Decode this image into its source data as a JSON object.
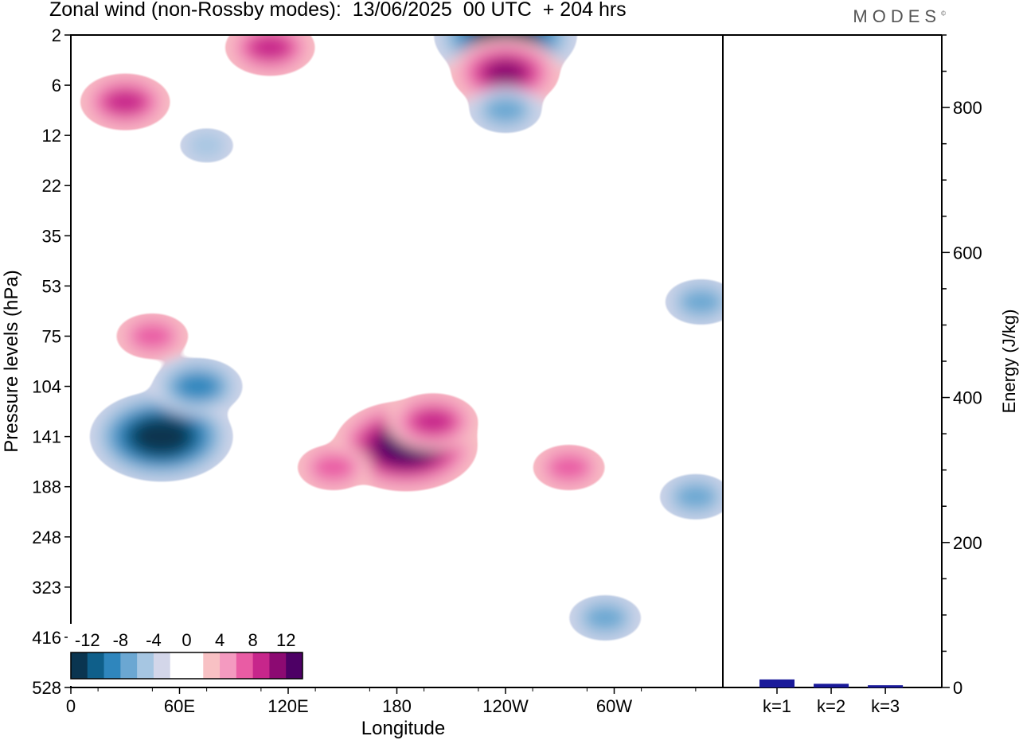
{
  "title": "Zonal wind (non-Rossby modes):  13/06/2025  00 UTC  + 204 hrs",
  "logo": "MODES",
  "logo_mark": "©",
  "chart_data": [
    {
      "type": "heatmap",
      "title": "Zonal wind (non-Rossby modes):  13/06/2025  00 UTC  + 204 hrs",
      "xlabel": "Longitude",
      "ylabel": "Pressure levels (hPa)",
      "x_ticks": [
        "0",
        "60E",
        "120E",
        "180",
        "120W",
        "60W"
      ],
      "y_ticks": [
        "2",
        "6",
        "12",
        "22",
        "35",
        "53",
        "75",
        "104",
        "141",
        "188",
        "248",
        "323",
        "416",
        "528"
      ],
      "colorbar": {
        "labels": [
          "-12",
          "-8",
          "-4",
          "0",
          "4",
          "8",
          "12"
        ],
        "levels": [
          -14,
          -12,
          -10,
          -8,
          -6,
          -4,
          -2,
          0,
          2,
          4,
          6,
          8,
          10,
          12,
          14
        ],
        "colors": [
          "#0a3550",
          "#0f5f8a",
          "#2f86bd",
          "#6ba7d2",
          "#a6c6e2",
          "#d3d6e9",
          "#ffffff",
          "#ffffff",
          "#f8c1c4",
          "#f49ac0",
          "#e95ca4",
          "#c7268b",
          "#8c0a72",
          "#4d0065"
        ]
      },
      "features": [
        {
          "lon": 50,
          "lev": 141,
          "value": -14
        },
        {
          "lon": 70,
          "lev": 104,
          "value": -8
        },
        {
          "lon": 185,
          "lev": 150,
          "value": 14
        },
        {
          "lon": 200,
          "lev": 130,
          "value": 8
        },
        {
          "lon": 145,
          "lev": 170,
          "value": 6
        },
        {
          "lon": 275,
          "lev": 170,
          "value": 6
        },
        {
          "lon": 45,
          "lev": 75,
          "value": 6
        },
        {
          "lon": 30,
          "lev": 8,
          "value": 8
        },
        {
          "lon": 110,
          "lev": 3,
          "value": 8
        },
        {
          "lon": 240,
          "lev": 2,
          "value": -14
        },
        {
          "lon": 240,
          "lev": 5,
          "value": 10
        },
        {
          "lon": 240,
          "lev": 9,
          "value": -6
        },
        {
          "lon": 75,
          "lev": 14,
          "value": -4
        },
        {
          "lon": 348,
          "lev": 60,
          "value": -6
        },
        {
          "lon": 345,
          "lev": 200,
          "value": -6
        },
        {
          "lon": 295,
          "lev": 380,
          "value": -6
        }
      ]
    },
    {
      "type": "bar",
      "ylabel": "Energy (J/kg)",
      "categories": [
        "k=1",
        "k=2",
        "k=3"
      ],
      "values": [
        10,
        4,
        2
      ],
      "ylim": [
        0,
        900
      ],
      "y_ticks": [
        "0",
        "200",
        "400",
        "600",
        "800"
      ],
      "bar_color": "#1a1a9a"
    }
  ]
}
